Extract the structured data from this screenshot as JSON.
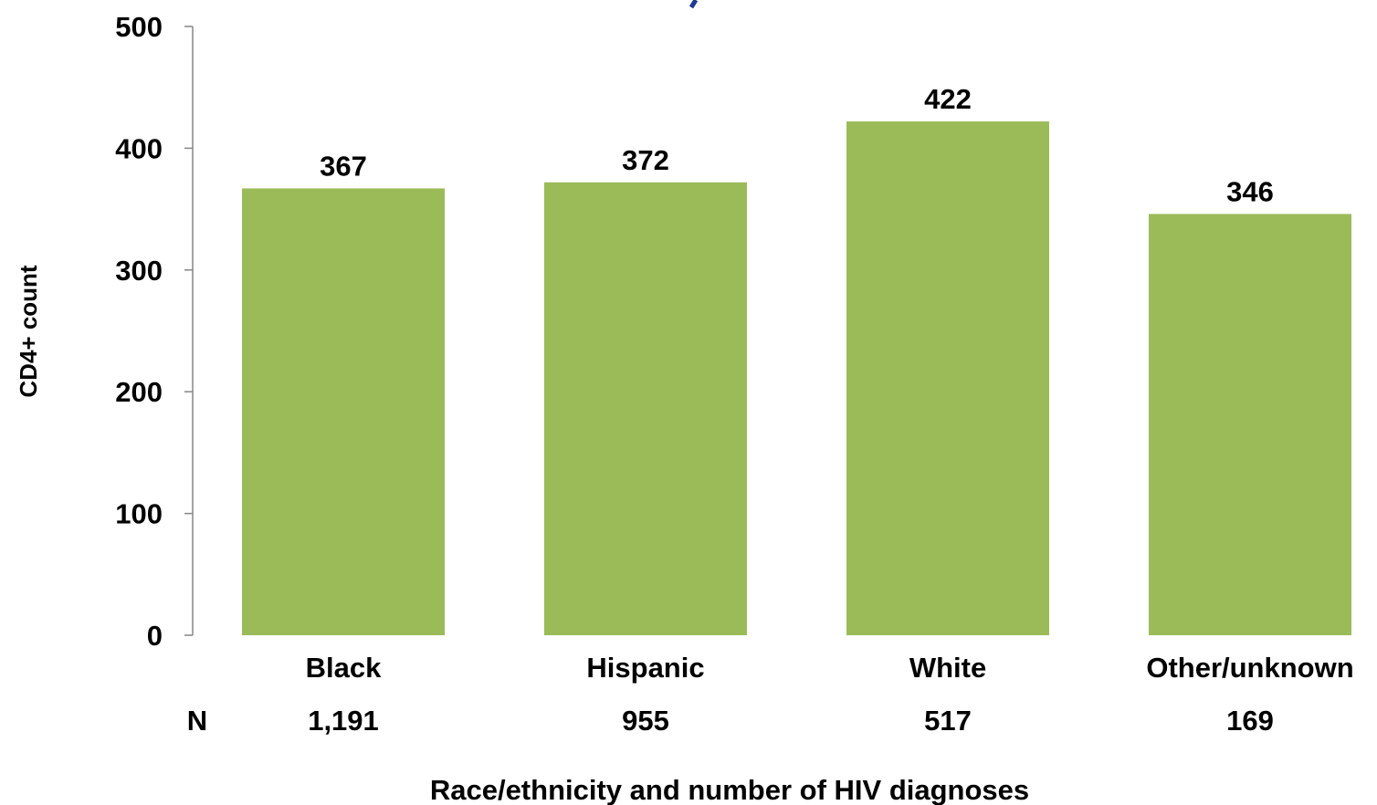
{
  "chart_data": {
    "type": "bar",
    "categories": [
      "Black",
      "Hispanic",
      "White",
      "Other/unknown"
    ],
    "values": [
      367,
      372,
      422,
      346
    ],
    "data_labels": [
      "367",
      "372",
      "422",
      "346"
    ],
    "n_label": "N",
    "n_values": [
      "1,191",
      "955",
      "517",
      "169"
    ],
    "title": "",
    "xlabel": "Race/ethnicity and number of HIV diagnoses",
    "ylabel": "CD4+ count",
    "ylim": [
      0,
      500
    ],
    "yticks": [
      0,
      100,
      200,
      300,
      400,
      500
    ],
    "grid": false,
    "legend": "none",
    "bar_color": "#9BBB59",
    "axis_color": "#868686"
  }
}
